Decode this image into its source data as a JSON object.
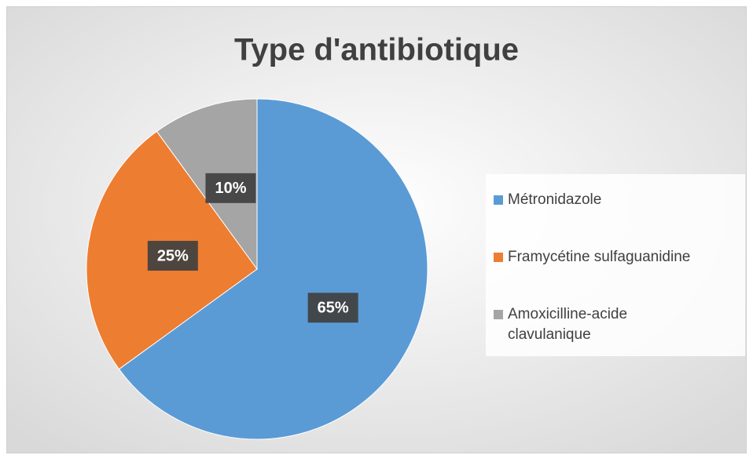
{
  "chart_data": {
    "type": "pie",
    "title": "Type d'antibiotique",
    "categories": [
      "Métronidazole",
      "Framycétine sulfaguanidine",
      "Amoxicilline-acide clavulanique"
    ],
    "values": [
      65,
      25,
      10
    ],
    "value_labels": [
      "65%",
      "25%",
      "10%"
    ],
    "colors": [
      "#5b9bd5",
      "#ed7d31",
      "#a5a5a5"
    ],
    "legend": "right"
  }
}
